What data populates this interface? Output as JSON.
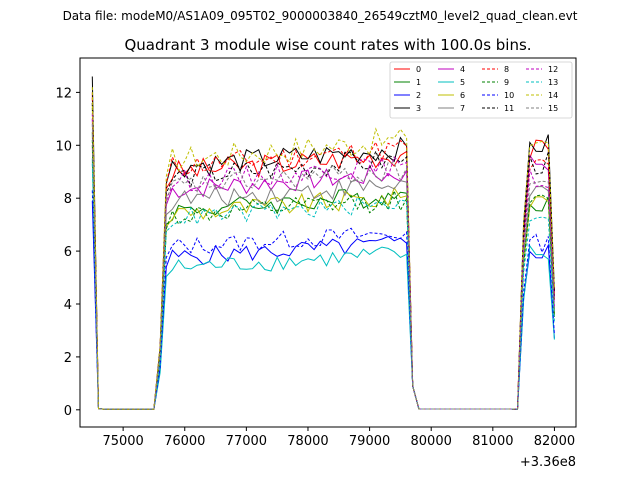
{
  "figure": {
    "suptitle": "Data file: modeM0/AS1A09_095T02_9000003840_26549cztM0_level2_quad_clean.evt"
  },
  "chart_data": {
    "type": "line",
    "title": "Quadrant 3 module wise count rates with 100.0s bins.",
    "xlabel": "",
    "ylabel": "",
    "x_offset_label": "+3.36e8",
    "xlim": [
      74300,
      82350
    ],
    "ylim": [
      -0.65,
      13.3
    ],
    "xticks": [
      75000,
      76000,
      77000,
      78000,
      79000,
      80000,
      81000,
      82000
    ],
    "yticks": [
      0,
      2,
      4,
      6,
      8,
      10,
      12
    ],
    "legend_position": "top-right",
    "segments": [
      {
        "start": 74500,
        "end": 75500
      },
      {
        "start": 75500,
        "end": 79600
      },
      {
        "start": 79600,
        "end": 81400
      },
      {
        "start": 81400,
        "end": 82000
      }
    ],
    "series": [
      {
        "name": "0",
        "color": "#ff0000",
        "dashed": false,
        "first": 12.0,
        "plateau": 9.3,
        "last": 9.8,
        "amp": 0.45
      },
      {
        "name": "1",
        "color": "#008000",
        "dashed": false,
        "first": 10.5,
        "plateau": 7.8,
        "last": 7.9,
        "amp": 0.4
      },
      {
        "name": "2",
        "color": "#0000ff",
        "dashed": false,
        "first": 7.9,
        "plateau": 6.0,
        "last": 6.0,
        "amp": 0.35
      },
      {
        "name": "3",
        "color": "#000000",
        "dashed": false,
        "first": 12.6,
        "plateau": 9.5,
        "last": 10.0,
        "amp": 0.45
      },
      {
        "name": "4",
        "color": "#bf00bf",
        "dashed": false,
        "first": 11.0,
        "plateau": 8.6,
        "last": 9.4,
        "amp": 0.4
      },
      {
        "name": "5",
        "color": "#00bfbf",
        "dashed": false,
        "first": 9.5,
        "plateau": 5.6,
        "last": 5.9,
        "amp": 0.35
      },
      {
        "name": "6",
        "color": "#bfbf00",
        "dashed": false,
        "first": 11.5,
        "plateau": 7.7,
        "last": 8.0,
        "amp": 0.4
      },
      {
        "name": "7",
        "color": "#808080",
        "dashed": false,
        "first": 10.0,
        "plateau": 8.2,
        "last": 8.3,
        "amp": 0.4
      },
      {
        "name": "8",
        "color": "#ff0000",
        "dashed": true,
        "first": 11.8,
        "plateau": 9.5,
        "last": 9.2,
        "amp": 0.45
      },
      {
        "name": "9",
        "color": "#008000",
        "dashed": true,
        "first": 10.2,
        "plateau": 7.6,
        "last": 7.8,
        "amp": 0.4
      },
      {
        "name": "10",
        "color": "#0000ff",
        "dashed": true,
        "first": 8.3,
        "plateau": 6.4,
        "last": 6.3,
        "amp": 0.35
      },
      {
        "name": "11",
        "color": "#000000",
        "dashed": true,
        "first": 11.6,
        "plateau": 9.1,
        "last": 9.3,
        "amp": 0.45
      },
      {
        "name": "12",
        "color": "#bf00bf",
        "dashed": true,
        "first": 11.2,
        "plateau": 8.9,
        "last": 8.7,
        "amp": 0.4
      },
      {
        "name": "13",
        "color": "#00bfbf",
        "dashed": true,
        "first": 9.3,
        "plateau": 7.5,
        "last": 7.4,
        "amp": 0.35
      },
      {
        "name": "14",
        "color": "#bfbf00",
        "dashed": true,
        "first": 12.2,
        "plateau": 9.8,
        "last": 10.2,
        "amp": 0.5
      },
      {
        "name": "15",
        "color": "#808080",
        "dashed": true,
        "first": 10.8,
        "plateau": 8.7,
        "last": 8.6,
        "amp": 0.4
      }
    ]
  }
}
